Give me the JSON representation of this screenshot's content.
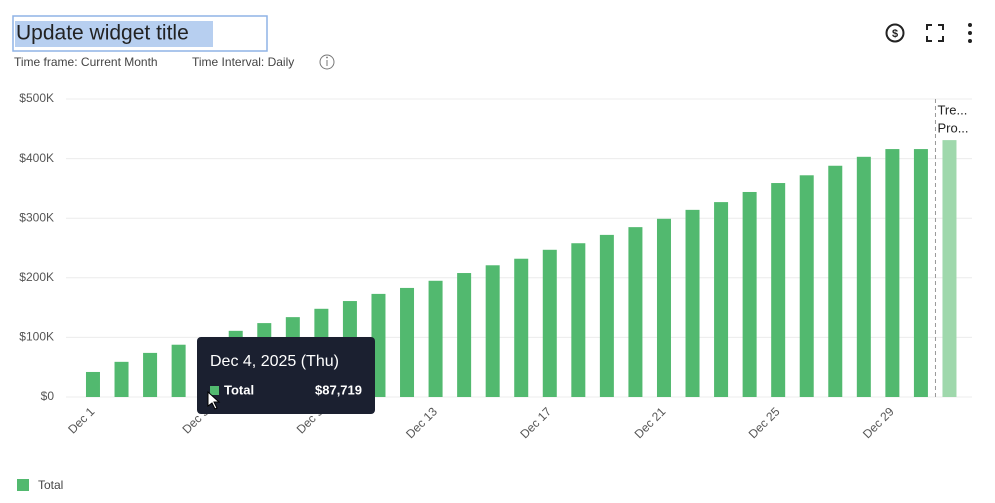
{
  "header": {
    "title": "Update widget title",
    "time_frame": "Time frame: Current Month",
    "time_interval": "Time Interval: Daily"
  },
  "chart_data": {
    "type": "bar",
    "categories": [
      "Dec 1",
      null,
      null,
      null,
      "Dec 5",
      null,
      null,
      null,
      "Dec 9",
      null,
      null,
      null,
      "Dec 13",
      null,
      null,
      null,
      "Dec 17",
      null,
      null,
      null,
      "Dec 21",
      null,
      null,
      null,
      "Dec 25",
      null,
      null,
      null,
      "Dec 29",
      null,
      null
    ],
    "series": [
      {
        "name": "Total",
        "color": "#52b96f",
        "values": [
          42000,
          59000,
          74000,
          87719,
          99000,
          111000,
          124000,
          134000,
          148000,
          161000,
          173000,
          183000,
          195000,
          208000,
          221000,
          232000,
          247000,
          258000,
          272000,
          285000,
          299000,
          314000,
          327000,
          344000,
          359000,
          372000,
          388000,
          403000,
          416000,
          416000,
          null
        ]
      }
    ],
    "projection": {
      "label_lines": [
        "Tre...",
        "Pro..."
      ],
      "value": 431000,
      "color": "#9fd8ac"
    },
    "ylim": [
      0,
      500000
    ],
    "yticks": [
      {
        "value": 0,
        "label": "$0"
      },
      {
        "value": 100000,
        "label": "$100K"
      },
      {
        "value": 200000,
        "label": "$200K"
      },
      {
        "value": 300000,
        "label": "$300K"
      },
      {
        "value": 400000,
        "label": "$400K"
      },
      {
        "value": 500000,
        "label": "$500K"
      }
    ],
    "grid": true,
    "tooltip": {
      "title": "Dec 4, 2025 (Thu)",
      "series_name": "Total",
      "value_label": "$87,719"
    }
  }
}
